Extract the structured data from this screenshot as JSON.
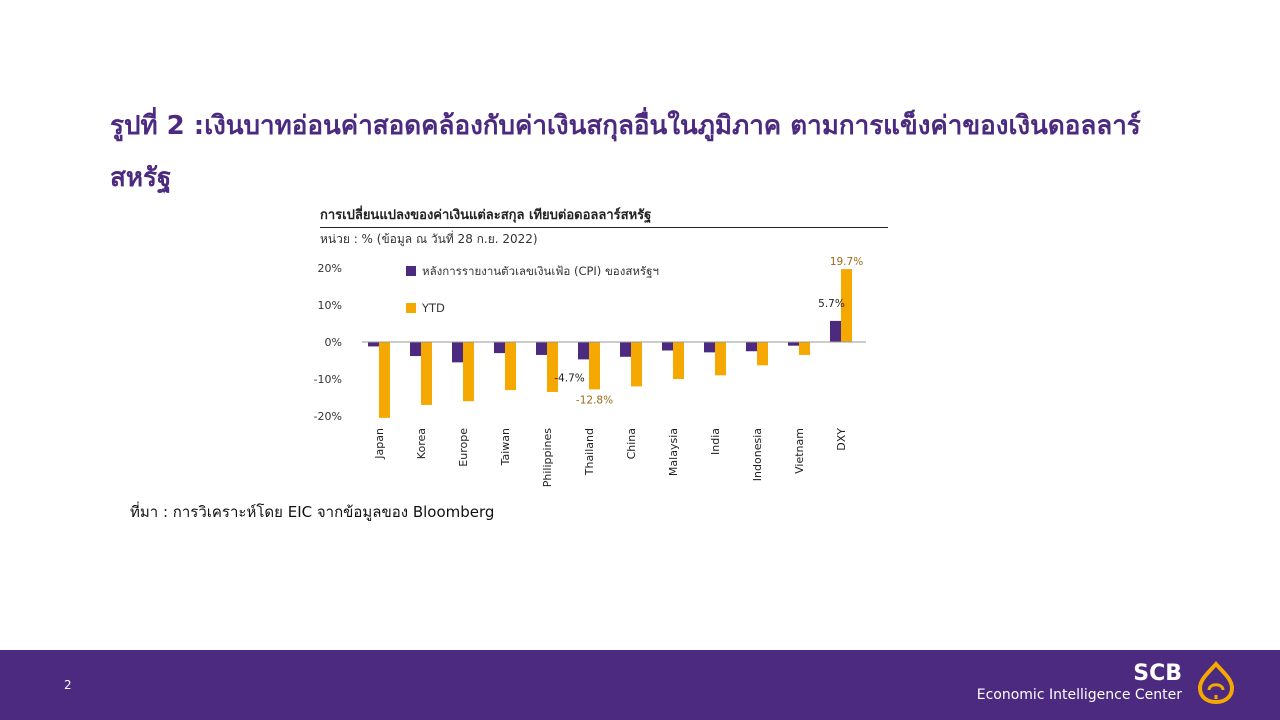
{
  "slide": {
    "title": "รูปที่ 2 :เงินบาทอ่อนค่าสอดคล้องกับค่าเงินสกุลอื่นในภูมิภาค ตามการแข็งค่าของเงินดอลลาร์สหรัฐ",
    "source": "ที่มา : การวิเคราะห์โดย EIC จากข้อมูลของ Bloomberg",
    "page_number": "2"
  },
  "branding": {
    "name": "SCB",
    "subtitle": "Economic Intelligence Center"
  },
  "colors": {
    "purple": "#4b2a7f",
    "gold": "#f5a800",
    "label_gold": "#9a6a1a"
  },
  "chart_data": {
    "type": "bar",
    "title": "การเปลี่ยนแปลงของค่าเงินแต่ละสกุล เทียบต่อดอลลาร์สหรัฐ",
    "subtitle": "หน่วย : % (ข้อมูล ณ วันที่ 28 ก.ย. 2022)",
    "categories": [
      "Japan",
      "Korea",
      "Europe",
      "Taiwan",
      "Philippines",
      "Thailand",
      "China",
      "Malaysia",
      "India",
      "Indonesia",
      "Vietnam",
      "DXY"
    ],
    "series": [
      {
        "name": "หลังการรายงานตัวเลขเงินเฟ้อ (CPI) ของสหรัฐฯ",
        "color": "#4b2a7f",
        "values": [
          -1.2,
          -3.8,
          -5.5,
          -3.0,
          -3.5,
          -4.7,
          -4.0,
          -2.3,
          -2.8,
          -2.5,
          -1.0,
          5.7
        ]
      },
      {
        "name": "YTD",
        "color": "#f5a800",
        "values": [
          -20.5,
          -17.0,
          -16.0,
          -13.0,
          -13.5,
          -12.8,
          -12.0,
          -10.0,
          -9.0,
          -6.3,
          -3.5,
          19.7
        ]
      }
    ],
    "data_labels": [
      {
        "series": 0,
        "category": "Thailand",
        "text": "-4.7%"
      },
      {
        "series": 1,
        "category": "Thailand",
        "text": "-12.8%"
      },
      {
        "series": 0,
        "category": "DXY",
        "text": "5.7%"
      },
      {
        "series": 1,
        "category": "DXY",
        "text": "19.7%"
      }
    ],
    "ylim": [
      -20,
      20
    ],
    "yticks": [
      "20%",
      "10%",
      "0%",
      "-10%",
      "-20%"
    ],
    "ytick_values": [
      20,
      10,
      0,
      -10,
      -20
    ],
    "legend_position": "top-left",
    "grid": false
  }
}
